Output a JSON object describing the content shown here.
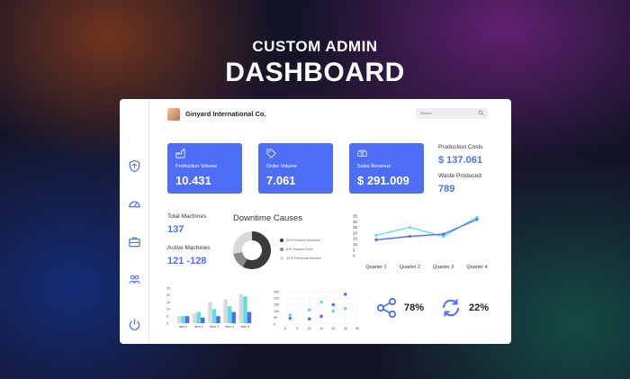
{
  "headline": {
    "line1": "CUSTOM ADMIN",
    "line2": "DASHBOARD"
  },
  "colors": {
    "accent": "#4f6ef7",
    "teal": "#5fe0e0",
    "dark_gray": "#3b3b3b",
    "mid_gray": "#8a8a8a",
    "light_gray": "#d9d9d9"
  },
  "topbar": {
    "company": "Ginyard International Co.",
    "search_placeholder": "Search"
  },
  "sidebar": {
    "icons": [
      "shield-icon",
      "speedometer-icon",
      "briefcase-icon",
      "users-icon",
      "power-icon"
    ]
  },
  "cards": [
    {
      "label": "Production Volume",
      "value": "10.431",
      "icon": "factory-icon"
    },
    {
      "label": "Order Volume",
      "value": "7.061",
      "icon": "tag-icon"
    },
    {
      "label": "Sales Revenue",
      "value": "$ 291.009",
      "icon": "money-icon"
    }
  ],
  "side_stats": {
    "production_costs_label": "Production Costs",
    "production_costs_value": "$ 137.061",
    "waste_label": "Waste Produced",
    "waste_value": "789"
  },
  "machines": {
    "total_label": "Total Machines",
    "total_value": "137",
    "active_label": "Active Machines",
    "active_value": "121 -128"
  },
  "downtime": {
    "title": "Downtime Causes",
    "legend": [
      {
        "label": "25% Broken Machine",
        "color": "#3b3b3b"
      },
      {
        "label": "6% Human Error",
        "color": "#8a8a8a"
      },
      {
        "label": "12% Personal Breaks",
        "color": "#d9d9d9"
      }
    ]
  },
  "kpis": {
    "share_value": "78%",
    "cycle_value": "22%"
  },
  "chart_data": [
    {
      "type": "pie",
      "labels": [
        "Broken Machine",
        "Human Error",
        "Personal Breaks"
      ],
      "values": [
        25,
        6,
        12
      ]
    },
    {
      "type": "line",
      "categories": [
        "Quarter 1",
        "Quarter 2",
        "Quarter 3",
        "Quarter 4"
      ],
      "ylim": [
        0,
        35
      ],
      "yticks": [
        "35",
        "30",
        "25",
        "20",
        "15",
        "10",
        "5",
        "0"
      ],
      "series": [
        {
          "values": [
            18,
            25,
            17,
            34
          ],
          "color": "#5fe0e0"
        },
        {
          "values": [
            14,
            17,
            19,
            32
          ],
          "color": "#4f6ef7"
        }
      ]
    },
    {
      "type": "bar",
      "categories": [
        "Item 1",
        "Item 2",
        "Item 3",
        "Item 4",
        "Item 5"
      ],
      "ylim": [
        0,
        25
      ],
      "yticks": [
        "25",
        "20",
        "15",
        "10",
        "5",
        "0"
      ],
      "series": [
        {
          "values": [
            5,
            7,
            15,
            17,
            21
          ],
          "color": "#d9d9d9"
        },
        {
          "values": [
            5,
            8,
            10,
            12,
            19
          ],
          "color": "#5fe0e0"
        },
        {
          "values": [
            5,
            4,
            5,
            8,
            8
          ],
          "color": "#4f6ef7"
        }
      ]
    },
    {
      "type": "scatter",
      "xlim": [
        0,
        30
      ],
      "ylim": [
        0,
        250
      ],
      "xticks": [
        "0",
        "5",
        "10",
        "15",
        "20",
        "25",
        "30"
      ],
      "yticks": [
        "250",
        "200",
        "150",
        "100",
        "50",
        "0"
      ],
      "series": [
        {
          "color": "#4f6ef7",
          "points": [
            [
              2,
              45
            ],
            [
              10,
              40
            ],
            [
              15,
              60
            ],
            [
              20,
              150
            ],
            [
              25,
              230
            ]
          ]
        },
        {
          "color": "#5fe0e0",
          "points": [
            [
              2,
              70
            ],
            [
              10,
              110
            ],
            [
              15,
              170
            ],
            [
              20,
              100
            ],
            [
              25,
              120
            ]
          ]
        }
      ]
    }
  ]
}
